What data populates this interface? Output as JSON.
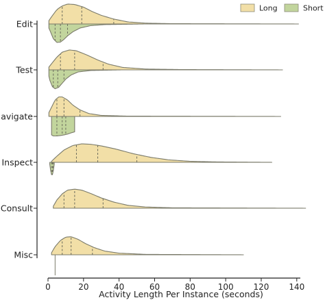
{
  "chart_data": {
    "type": "split-violin",
    "xlabel": "Activity Length Per Instance (seconds)",
    "xlim": [
      0,
      142
    ],
    "xticks": [
      0,
      20,
      40,
      60,
      80,
      100,
      120,
      140
    ],
    "grid": false,
    "legend_position": "top-right",
    "categories": [
      "Edit",
      "Test",
      "Navigate",
      "Inspect",
      "Consult",
      "Misc"
    ],
    "series": [
      {
        "name": "Long",
        "color": "#f2dfa7",
        "side": "upper",
        "violins": [
          {
            "category": "Edit",
            "min": 0.5,
            "max": 141,
            "quartiles": [
              8,
              19,
              37
            ],
            "density": [
              [
                0,
                0.1
              ],
              [
                2,
                0.35
              ],
              [
                5,
                0.7
              ],
              [
                8,
                0.88
              ],
              [
                11,
                0.97
              ],
              [
                15,
                0.95
              ],
              [
                20,
                0.82
              ],
              [
                25,
                0.6
              ],
              [
                30,
                0.42
              ],
              [
                37,
                0.24
              ],
              [
                45,
                0.1
              ],
              [
                55,
                0.04
              ],
              [
                70,
                0.015
              ],
              [
                141,
                0
              ]
            ]
          },
          {
            "category": "Test",
            "min": 0.5,
            "max": 132,
            "quartiles": [
              7,
              15,
              31
            ],
            "density": [
              [
                0,
                0.08
              ],
              [
                2,
                0.3
              ],
              [
                5,
                0.62
              ],
              [
                8,
                0.86
              ],
              [
                12,
                0.97
              ],
              [
                16,
                0.93
              ],
              [
                22,
                0.72
              ],
              [
                28,
                0.48
              ],
              [
                34,
                0.28
              ],
              [
                42,
                0.12
              ],
              [
                55,
                0.04
              ],
              [
                75,
                0.015
              ],
              [
                132,
                0
              ]
            ]
          },
          {
            "category": "Navigate",
            "min": 0.5,
            "max": 131,
            "quartiles": [
              5,
              9,
              18
            ],
            "density": [
              [
                0,
                0.1
              ],
              [
                2,
                0.45
              ],
              [
                4,
                0.8
              ],
              [
                6,
                0.95
              ],
              [
                8,
                0.95
              ],
              [
                11,
                0.8
              ],
              [
                14,
                0.55
              ],
              [
                18,
                0.32
              ],
              [
                23,
                0.14
              ],
              [
                30,
                0.05
              ],
              [
                45,
                0.015
              ],
              [
                131,
                0
              ]
            ]
          },
          {
            "category": "Inspect",
            "min": 2,
            "max": 126,
            "quartiles": [
              16,
              28,
              50
            ],
            "density": [
              [
                2,
                0.05
              ],
              [
                5,
                0.3
              ],
              [
                9,
                0.6
              ],
              [
                14,
                0.82
              ],
              [
                19,
                0.9
              ],
              [
                24,
                0.88
              ],
              [
                30,
                0.8
              ],
              [
                38,
                0.65
              ],
              [
                48,
                0.42
              ],
              [
                58,
                0.24
              ],
              [
                68,
                0.12
              ],
              [
                80,
                0.05
              ],
              [
                95,
                0.02
              ],
              [
                126,
                0
              ]
            ]
          },
          {
            "category": "Consult",
            "min": 3,
            "max": 145,
            "quartiles": [
              9,
              15,
              31
            ],
            "density": [
              [
                3,
                0.1
              ],
              [
                5,
                0.4
              ],
              [
                8,
                0.7
              ],
              [
                11,
                0.88
              ],
              [
                15,
                0.93
              ],
              [
                19,
                0.88
              ],
              [
                24,
                0.72
              ],
              [
                30,
                0.5
              ],
              [
                37,
                0.3
              ],
              [
                45,
                0.14
              ],
              [
                55,
                0.06
              ],
              [
                70,
                0.02
              ],
              [
                145,
                0
              ]
            ]
          },
          {
            "category": "Misc",
            "min": 2,
            "max": 110,
            "quartiles": [
              8,
              13,
              25
            ],
            "density": [
              [
                2,
                0.1
              ],
              [
                4,
                0.4
              ],
              [
                7,
                0.7
              ],
              [
                10,
                0.86
              ],
              [
                13,
                0.88
              ],
              [
                17,
                0.75
              ],
              [
                21,
                0.55
              ],
              [
                26,
                0.35
              ],
              [
                32,
                0.18
              ],
              [
                40,
                0.08
              ],
              [
                55,
                0.02
              ],
              [
                110,
                0
              ]
            ]
          }
        ]
      },
      {
        "name": "Short",
        "color": "#c2d59d",
        "side": "lower",
        "violins": [
          {
            "category": "Edit",
            "min": 0.5,
            "max": 54,
            "quartiles": [
              4,
              7,
              11
            ],
            "density": [
              [
                0,
                0.1
              ],
              [
                1.5,
                0.4
              ],
              [
                3,
                0.72
              ],
              [
                5,
                0.9
              ],
              [
                7,
                0.88
              ],
              [
                9,
                0.75
              ],
              [
                11,
                0.58
              ],
              [
                14,
                0.38
              ],
              [
                18,
                0.2
              ],
              [
                24,
                0.08
              ],
              [
                32,
                0.03
              ],
              [
                54,
                0
              ]
            ]
          },
          {
            "category": "Test",
            "min": 0.5,
            "max": 41,
            "quartiles": [
              3,
              5.5,
              9
            ],
            "density": [
              [
                0,
                0.1
              ],
              [
                1,
                0.5
              ],
              [
                2.5,
                0.82
              ],
              [
                4,
                0.92
              ],
              [
                6,
                0.85
              ],
              [
                8,
                0.65
              ],
              [
                10,
                0.45
              ],
              [
                13,
                0.25
              ],
              [
                17,
                0.1
              ],
              [
                24,
                0.03
              ],
              [
                41,
                0
              ]
            ]
          },
          {
            "category": "Navigate",
            "min": 2,
            "max": 15,
            "quartiles": [
              5,
              8,
              10
            ],
            "density": [
              [
                2,
                0.9
              ],
              [
                3,
                0.95
              ],
              [
                5,
                0.95
              ],
              [
                7,
                0.93
              ],
              [
                9,
                0.9
              ],
              [
                11,
                0.86
              ],
              [
                13,
                0.8
              ],
              [
                15,
                0.75
              ]
            ]
          },
          {
            "category": "Inspect",
            "min": 1,
            "max": 3.5,
            "quartiles": [
              2,
              2.5,
              3
            ],
            "density": [
              [
                1,
                0.1
              ],
              [
                1.5,
                0.4
              ],
              [
                2,
                0.6
              ],
              [
                2.5,
                0.6
              ],
              [
                3,
                0.4
              ],
              [
                3.5,
                0.1
              ]
            ]
          },
          {
            "category": "Consult",
            "min": null,
            "max": null,
            "quartiles": [],
            "density": []
          },
          {
            "category": "Misc",
            "min": 4,
            "max": 4,
            "quartiles": [],
            "density": [
              [
                4,
                0.5
              ]
            ]
          }
        ]
      }
    ]
  }
}
